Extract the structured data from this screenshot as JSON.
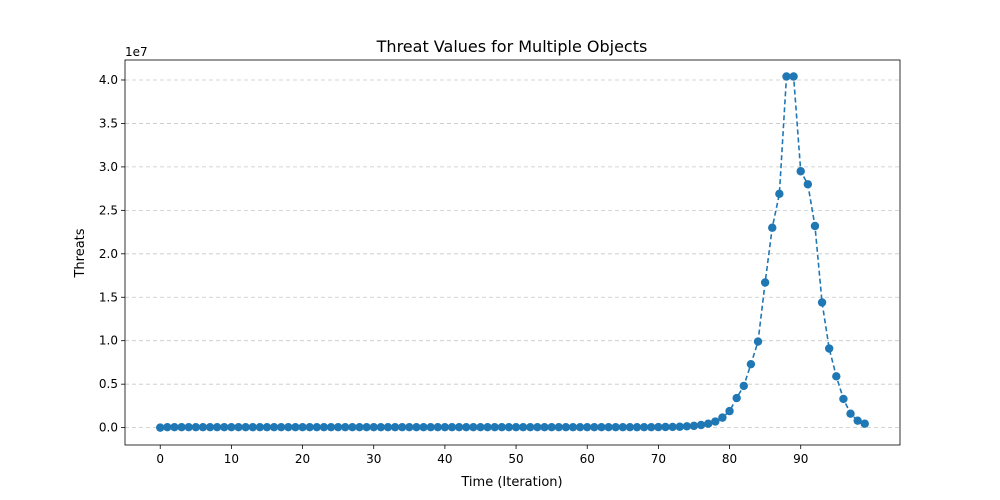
{
  "chart_data": {
    "type": "line",
    "title": "Threat Values for Multiple Objects",
    "xlabel": "Time (Iteration)",
    "ylabel": "Threats",
    "y_offset_label": "1e7",
    "x_range": [
      -4.95,
      103.95
    ],
    "ylim": [
      -2000000,
      42300000
    ],
    "x_ticks": [
      0,
      10,
      20,
      30,
      40,
      50,
      60,
      70,
      80,
      90
    ],
    "x_tick_labels": [
      "0",
      "10",
      "20",
      "30",
      "40",
      "50",
      "60",
      "70",
      "80",
      "90"
    ],
    "y_ticks": [
      0,
      5000000,
      10000000,
      15000000,
      20000000,
      25000000,
      30000000,
      35000000,
      40000000
    ],
    "y_tick_labels": [
      "0.0",
      "0.5",
      "1.0",
      "1.5",
      "2.0",
      "2.5",
      "3.0",
      "3.5",
      "4.0"
    ],
    "grid": "horizontal-dashed",
    "line_style": "dashed",
    "marker": "circle",
    "color": "#1f77b4",
    "series": [
      {
        "x": [
          0,
          1,
          2,
          3,
          4,
          5,
          6,
          7,
          8,
          9,
          10,
          11,
          12,
          13,
          14,
          15,
          16,
          17,
          18,
          19,
          20,
          21,
          22,
          23,
          24,
          25,
          26,
          27,
          28,
          29,
          30,
          31,
          32,
          33,
          34,
          35,
          36,
          37,
          38,
          39,
          40,
          41,
          42,
          43,
          44,
          45,
          46,
          47,
          48,
          49,
          50,
          51,
          52,
          53,
          54,
          55,
          56,
          57,
          58,
          59,
          60,
          61,
          62,
          63,
          64,
          65,
          66,
          67,
          68,
          69,
          70,
          71,
          72,
          73,
          74,
          75,
          76,
          77,
          78,
          79,
          80,
          81,
          82,
          83,
          84,
          85,
          86,
          87,
          88,
          89,
          90,
          91,
          92,
          93,
          94,
          95,
          96,
          97,
          98,
          99
        ],
        "values": [
          0,
          50000,
          50000,
          50000,
          50000,
          50000,
          50000,
          50000,
          50000,
          50000,
          50000,
          50000,
          50000,
          50000,
          50000,
          50000,
          50000,
          50000,
          50000,
          50000,
          50000,
          50000,
          50000,
          50000,
          50000,
          50000,
          50000,
          50000,
          50000,
          50000,
          50000,
          50000,
          50000,
          50000,
          50000,
          50000,
          50000,
          50000,
          50000,
          50000,
          50000,
          50000,
          50000,
          50000,
          50000,
          50000,
          50000,
          50000,
          50000,
          50000,
          50000,
          50000,
          50000,
          50000,
          50000,
          50000,
          50000,
          50000,
          50000,
          50000,
          50000,
          50000,
          50000,
          50000,
          50000,
          50000,
          50000,
          50000,
          50000,
          50000,
          60000,
          70000,
          80000,
          100000,
          150000,
          200000,
          300000,
          450000,
          700000,
          1150000,
          1900000,
          3400000,
          4800000,
          7300000,
          9900000,
          16700000,
          23000000,
          26900000,
          40400000,
          40400000,
          29500000,
          28000000,
          23200000,
          14400000,
          9100000,
          5900000,
          3300000,
          1600000,
          800000,
          450000
        ]
      }
    ]
  }
}
